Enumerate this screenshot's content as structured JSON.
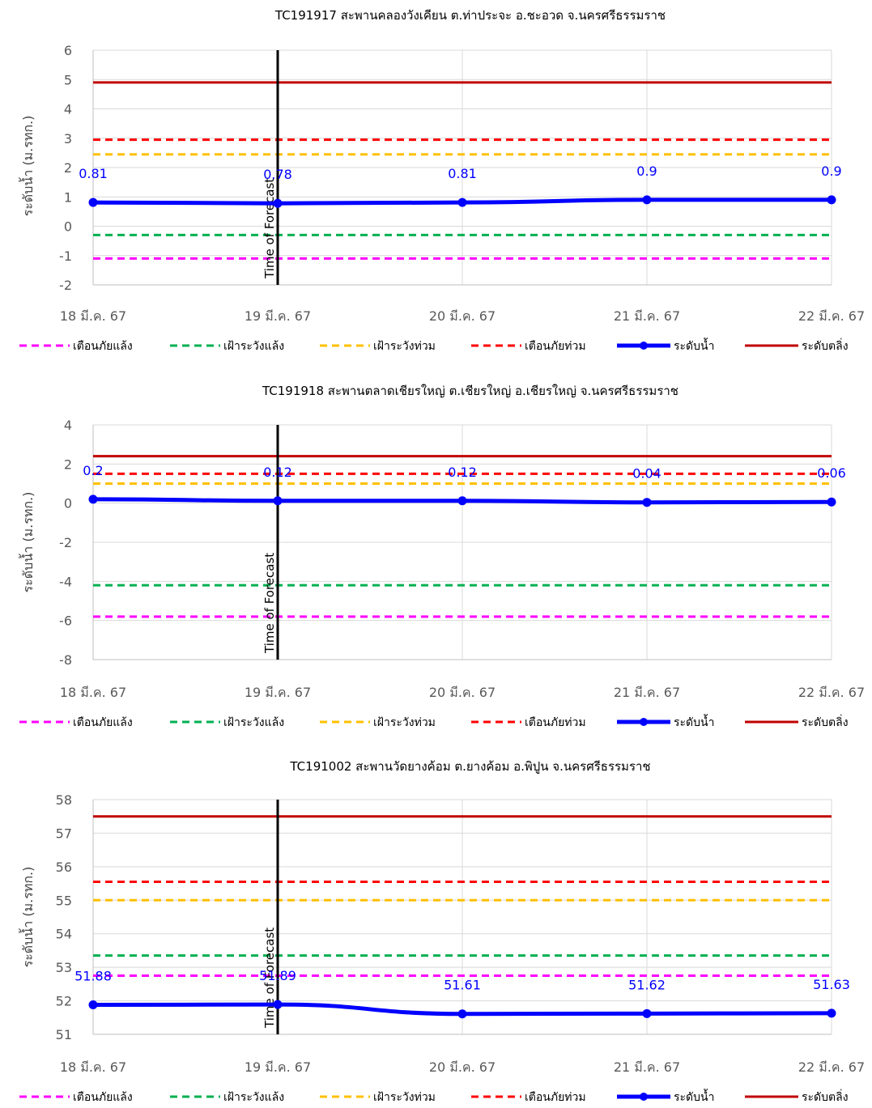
{
  "chart_data": [
    {
      "type": "line",
      "title": "TC191917 สะพานคลองวังเคียน ต.ท่าประจะ อ.ชะอวด จ.นครศรีธรรมราช",
      "ylabel": "ระดับน้ำ (ม.รทก.)",
      "xlabel": "",
      "categories": [
        "18 มี.ค. 67",
        "19 มี.ค. 67",
        "20 มี.ค. 67",
        "21 มี.ค. 67",
        "22 มี.ค. 67"
      ],
      "ylim": [
        -2,
        6
      ],
      "yticks": [
        6,
        5,
        4,
        3,
        2,
        1,
        0,
        -1,
        -2
      ],
      "grid": true,
      "legend_position": "bottom",
      "marker_line_label": "Time of Forecast",
      "marker_line_category_index": 1,
      "series": [
        {
          "name": "เตือนภัยแล้ง",
          "values": [
            -1.1,
            -1.1,
            -1.1,
            -1.1,
            -1.1
          ],
          "color": "#ff00ff",
          "style": "dashed"
        },
        {
          "name": "เฝ้าระวังแล้ง",
          "values": [
            -0.3,
            -0.3,
            -0.3,
            -0.3,
            -0.3
          ],
          "color": "#00b050",
          "style": "dashed"
        },
        {
          "name": "เฝ้าระวังท่วม",
          "values": [
            2.45,
            2.45,
            2.45,
            2.45,
            2.45
          ],
          "color": "#ffc000",
          "style": "dashed"
        },
        {
          "name": "เตือนภัยท่วม",
          "values": [
            2.95,
            2.95,
            2.95,
            2.95,
            2.95
          ],
          "color": "#ff0000",
          "style": "dashed"
        },
        {
          "name": "ระดับน้ำ",
          "values": [
            0.81,
            0.78,
            0.81,
            0.9,
            0.9
          ],
          "color": "#0000ff",
          "style": "marker",
          "labels": [
            "0.81",
            "0.78",
            "0.81",
            "0.9",
            "0.9"
          ]
        },
        {
          "name": "ระดับตลิ่ง",
          "values": [
            4.9,
            4.9,
            4.9,
            4.9,
            4.9
          ],
          "color": "#c00000",
          "style": "solid"
        }
      ]
    },
    {
      "type": "line",
      "title": "TC191918 สะพานตลาดเชียรใหญ่ ต.เชียรใหญ่ อ.เชียรใหญ่ จ.นครศรีธรรมราช",
      "ylabel": "ระดับน้ำ (ม.รทก.)",
      "xlabel": "",
      "categories": [
        "18 มี.ค. 67",
        "19 มี.ค. 67",
        "20 มี.ค. 67",
        "21 มี.ค. 67",
        "22 มี.ค. 67"
      ],
      "ylim": [
        -8,
        4
      ],
      "yticks": [
        4,
        2,
        0,
        -2,
        -4,
        -6,
        -8
      ],
      "grid": true,
      "legend_position": "bottom",
      "marker_line_label": "Time of Forecast",
      "marker_line_category_index": 1,
      "series": [
        {
          "name": "เตือนภัยแล้ง",
          "values": [
            -5.8,
            -5.8,
            -5.8,
            -5.8,
            -5.8
          ],
          "color": "#ff00ff",
          "style": "dashed"
        },
        {
          "name": "เฝ้าระวังแล้ง",
          "values": [
            -4.2,
            -4.2,
            -4.2,
            -4.2,
            -4.2
          ],
          "color": "#00b050",
          "style": "dashed"
        },
        {
          "name": "เฝ้าระวังท่วม",
          "values": [
            1.0,
            1.0,
            1.0,
            1.0,
            1.0
          ],
          "color": "#ffc000",
          "style": "dashed"
        },
        {
          "name": "เตือนภัยท่วม",
          "values": [
            1.5,
            1.5,
            1.5,
            1.5,
            1.5
          ],
          "color": "#ff0000",
          "style": "dashed"
        },
        {
          "name": "ระดับน้ำ",
          "values": [
            0.2,
            0.12,
            0.12,
            0.04,
            0.06
          ],
          "color": "#0000ff",
          "style": "marker",
          "labels": [
            "0.2",
            "0.12",
            "0.12",
            "0.04",
            "0.06"
          ]
        },
        {
          "name": "ระดับตลิ่ง",
          "values": [
            2.4,
            2.4,
            2.4,
            2.4,
            2.4
          ],
          "color": "#c00000",
          "style": "solid"
        }
      ]
    },
    {
      "type": "line",
      "title": "TC191002 สะพานวัดยางค้อม ต.ยางค้อม อ.พิปูน จ.นครศรีธรรมราช",
      "ylabel": "ระดับน้ำ (ม.รทก.)",
      "xlabel": "",
      "categories": [
        "18 มี.ค. 67",
        "19 มี.ค. 67",
        "20 มี.ค. 67",
        "21 มี.ค. 67",
        "22 มี.ค. 67"
      ],
      "ylim": [
        51,
        58
      ],
      "yticks": [
        58,
        57,
        56,
        55,
        54,
        53,
        52,
        51
      ],
      "grid": true,
      "legend_position": "bottom",
      "marker_line_label": "Time of Forecast",
      "marker_line_category_index": 1,
      "series": [
        {
          "name": "เตือนภัยแล้ง",
          "values": [
            52.75,
            52.75,
            52.75,
            52.75,
            52.75
          ],
          "color": "#ff00ff",
          "style": "dashed"
        },
        {
          "name": "เฝ้าระวังแล้ง",
          "values": [
            53.35,
            53.35,
            53.35,
            53.35,
            53.35
          ],
          "color": "#00b050",
          "style": "dashed"
        },
        {
          "name": "เฝ้าระวังท่วม",
          "values": [
            55.0,
            55.0,
            55.0,
            55.0,
            55.0
          ],
          "color": "#ffc000",
          "style": "dashed"
        },
        {
          "name": "เตือนภัยท่วม",
          "values": [
            55.55,
            55.55,
            55.55,
            55.55,
            55.55
          ],
          "color": "#ff0000",
          "style": "dashed"
        },
        {
          "name": "ระดับน้ำ",
          "values": [
            51.88,
            51.89,
            51.61,
            51.62,
            51.63
          ],
          "color": "#0000ff",
          "style": "marker",
          "labels": [
            "51.88",
            "51.89",
            "51.61",
            "51.62",
            "51.63"
          ]
        },
        {
          "name": "ระดับตลิ่ง",
          "values": [
            57.5,
            57.5,
            57.5,
            57.5,
            57.5
          ],
          "color": "#c00000",
          "style": "solid"
        }
      ]
    }
  ]
}
